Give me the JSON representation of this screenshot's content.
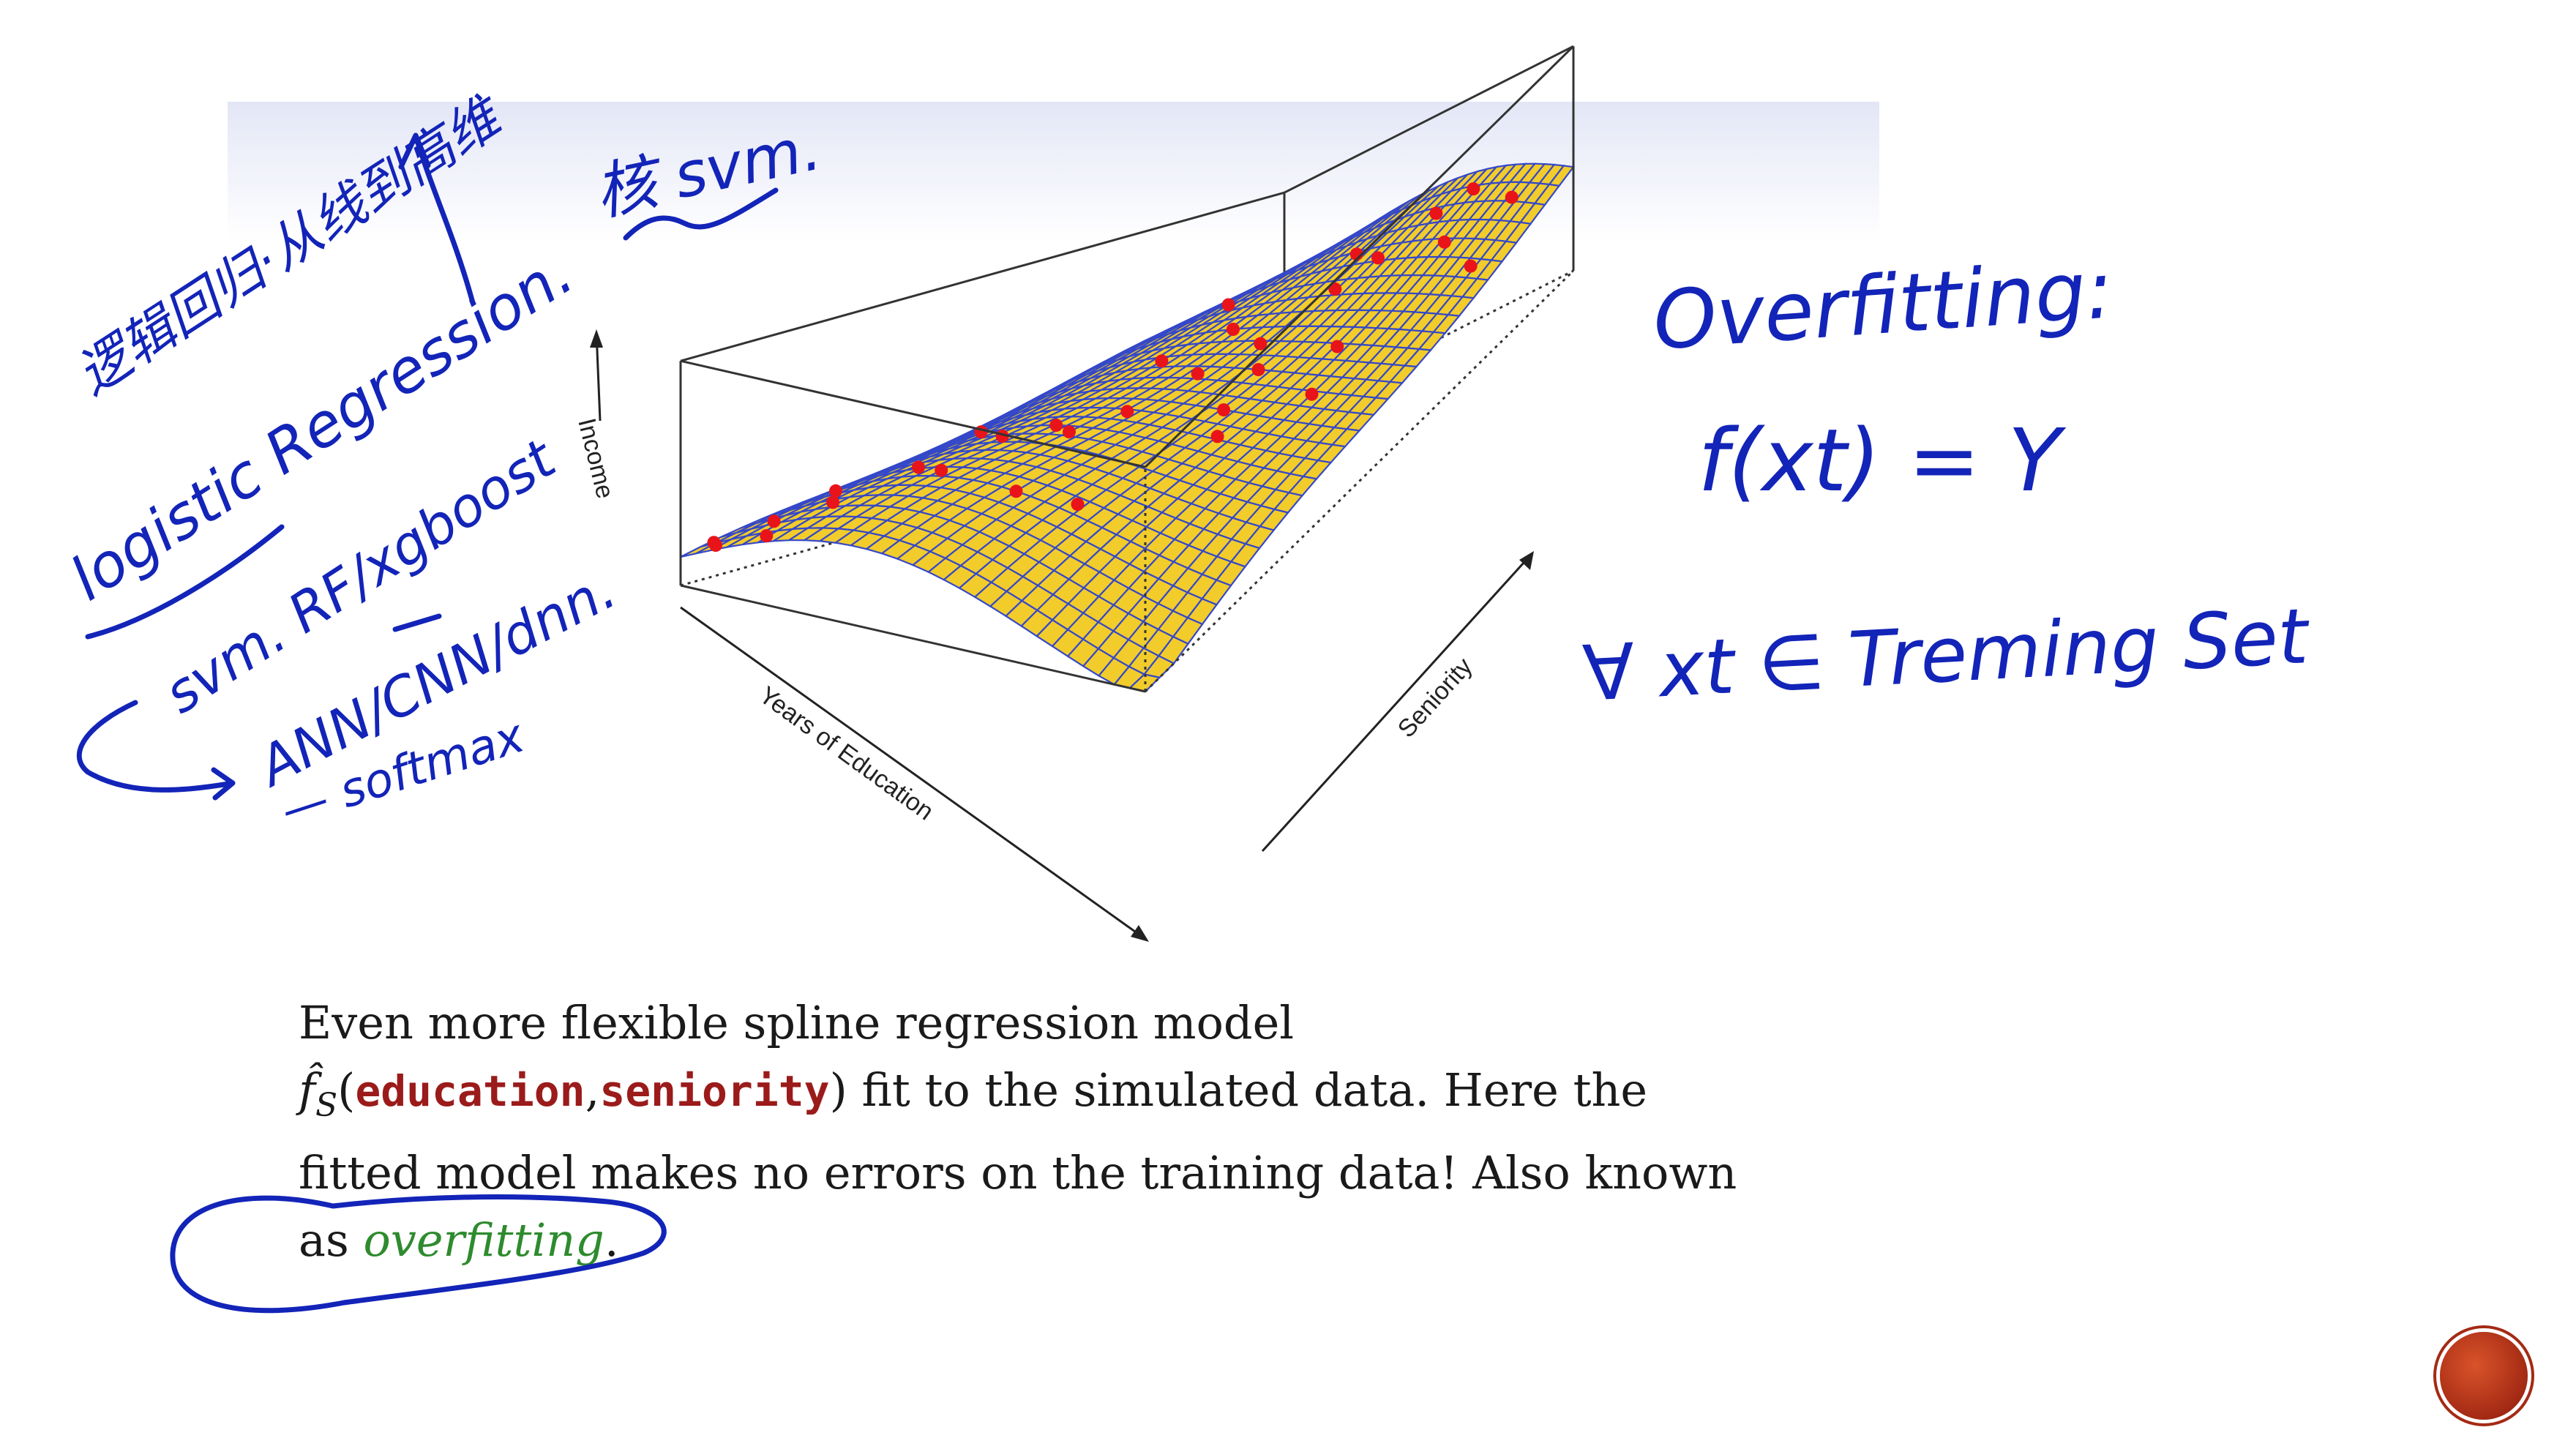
{
  "chart_data": {
    "type": "surface3d",
    "xlabel": "Years of Education",
    "ylabel": "Seniority",
    "zlabel": "Income",
    "grid_n": 30,
    "surface_color": "#f2cc2a",
    "mesh_color": "#3548c8",
    "point_color": "#e8141a",
    "points": [
      {
        "u": 0.02,
        "v": 0.04,
        "z": 0.1
      },
      {
        "u": 0.05,
        "v": 0.02,
        "z": 0.05
      },
      {
        "u": 0.1,
        "v": 0.08,
        "z": 0.11
      },
      {
        "u": 0.16,
        "v": 0.02,
        "z": 0.02
      },
      {
        "u": 0.18,
        "v": 0.12,
        "z": 0.15
      },
      {
        "u": 0.08,
        "v": 0.2,
        "z": 0.18
      },
      {
        "u": 0.22,
        "v": 0.24,
        "z": 0.22
      },
      {
        "u": 0.3,
        "v": 0.22,
        "z": 0.12
      },
      {
        "u": 0.26,
        "v": 0.36,
        "z": 0.4
      },
      {
        "u": 0.12,
        "v": 0.42,
        "z": 0.58
      },
      {
        "u": 0.34,
        "v": 0.4,
        "z": 0.46
      },
      {
        "u": 0.4,
        "v": 0.38,
        "z": 0.4
      },
      {
        "u": 0.44,
        "v": 0.46,
        "z": 0.52
      },
      {
        "u": 0.5,
        "v": 0.2,
        "z": 0.08
      },
      {
        "u": 0.62,
        "v": 0.22,
        "z": 0.04
      },
      {
        "u": 0.3,
        "v": 0.62,
        "z": 0.6
      },
      {
        "u": 0.46,
        "v": 0.58,
        "z": 0.66
      },
      {
        "u": 0.38,
        "v": 0.7,
        "z": 0.64
      },
      {
        "u": 0.52,
        "v": 0.66,
        "z": 0.62
      },
      {
        "u": 0.56,
        "v": 0.78,
        "z": 0.72
      },
      {
        "u": 0.6,
        "v": 0.84,
        "z": 0.8
      },
      {
        "u": 0.5,
        "v": 0.86,
        "z": 0.86
      },
      {
        "u": 0.66,
        "v": 0.92,
        "z": 0.82
      },
      {
        "u": 0.72,
        "v": 0.96,
        "z": 0.92
      },
      {
        "u": 0.78,
        "v": 0.86,
        "z": 0.7
      },
      {
        "u": 0.64,
        "v": 0.5,
        "z": 0.4
      },
      {
        "u": 0.7,
        "v": 0.44,
        "z": 0.3
      },
      {
        "u": 0.8,
        "v": 0.56,
        "z": 0.46
      },
      {
        "u": 0.74,
        "v": 0.66,
        "z": 0.62
      },
      {
        "u": 0.88,
        "v": 0.94,
        "z": 0.8
      },
      {
        "u": 0.92,
        "v": 0.82,
        "z": 0.7
      },
      {
        "u": 0.6,
        "v": 0.6,
        "z": 0.6
      },
      {
        "u": 0.2,
        "v": 0.8,
        "z": 0.92
      }
    ]
  },
  "caption": {
    "line1": "Even more flexible spline regression model",
    "f_symbol": "f̂",
    "f_subscript": "S",
    "paren_open": "(",
    "var1": "education",
    "comma": ",",
    "var2": "seniority",
    "line2_rest": ") fit to the simulated data. Here the",
    "line3": "fitted model makes no errors on the training data! Also known",
    "line4_prefix": "as ",
    "highlight": "overfitting",
    "period": "."
  },
  "annotations": {
    "left_chinese": "逻辑回归·从线到高维",
    "kernel_svm": "核 svm.",
    "logistic_regression": "logistic Regression.",
    "svm_rf": "svm. RF/xgboost",
    "ann": "ANN/CNN/dnn.",
    "softmax": "— softmax",
    "overfitting_title": "Overfitting:",
    "f_equation": "f(xt) = Y",
    "forall_line": "∀ xt ∈ Treming Set"
  }
}
